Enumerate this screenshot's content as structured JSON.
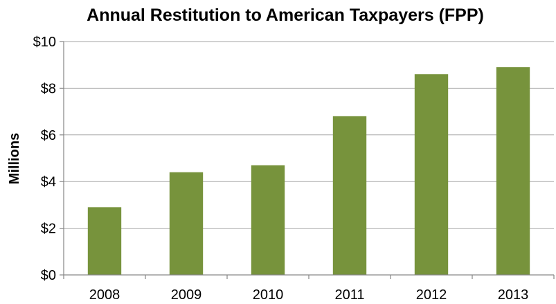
{
  "chart_data": {
    "type": "bar",
    "title": "Annual Restitution to American Taxpayers (FPP)",
    "ylabel": "Millions",
    "xlabel": "",
    "categories": [
      "2008",
      "2009",
      "2010",
      "2011",
      "2012",
      "2013"
    ],
    "values": [
      2.9,
      4.4,
      4.7,
      6.8,
      8.6,
      8.9
    ],
    "ylim": [
      0,
      10
    ],
    "yticks": [
      0,
      2,
      4,
      6,
      8,
      10
    ],
    "ytick_labels": [
      "$0",
      "$2",
      "$4",
      "$6",
      "$8",
      "$10"
    ],
    "grid": true,
    "legend": "none",
    "colors": {
      "bar": "#77933c",
      "grid": "#a6a6a6",
      "axis": "#868686"
    }
  }
}
